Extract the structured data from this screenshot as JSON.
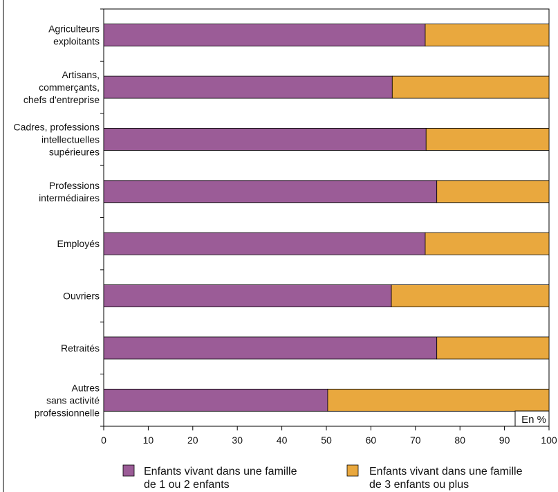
{
  "chart_data": {
    "type": "bar",
    "orientation": "horizontal",
    "stacked": true,
    "unit_label": "En %",
    "categories": [
      [
        "Agriculteurs",
        "exploitants"
      ],
      [
        "Artisans,",
        "commerçants,",
        "chefs d'entreprise"
      ],
      [
        "Cadres, professions",
        "intellectuelles",
        "supérieures"
      ],
      [
        "Professions",
        "intermédiaires"
      ],
      [
        "Employés"
      ],
      [
        "Ouvriers"
      ],
      [
        "Retraités"
      ],
      [
        "Autres",
        "sans activité",
        "professionnelle"
      ]
    ],
    "series": [
      {
        "name": [
          "Enfants vivant dans une famille",
          "de 1 ou 2 enfants"
        ],
        "color": "#9B5C97",
        "values": [
          72.2,
          64.8,
          72.4,
          74.8,
          72.2,
          64.6,
          74.8,
          50.3
        ]
      },
      {
        "name": [
          "Enfants vivant dans une famille",
          "de 3 enfants ou plus"
        ],
        "color": "#E9A83E",
        "values": [
          27.8,
          35.2,
          27.6,
          25.2,
          27.8,
          35.4,
          25.2,
          49.7
        ]
      }
    ],
    "xlim": [
      0,
      100
    ],
    "xticks": [
      0,
      10,
      20,
      30,
      40,
      50,
      60,
      70,
      80,
      90,
      100
    ],
    "grid": false,
    "legend_position": "bottom"
  }
}
